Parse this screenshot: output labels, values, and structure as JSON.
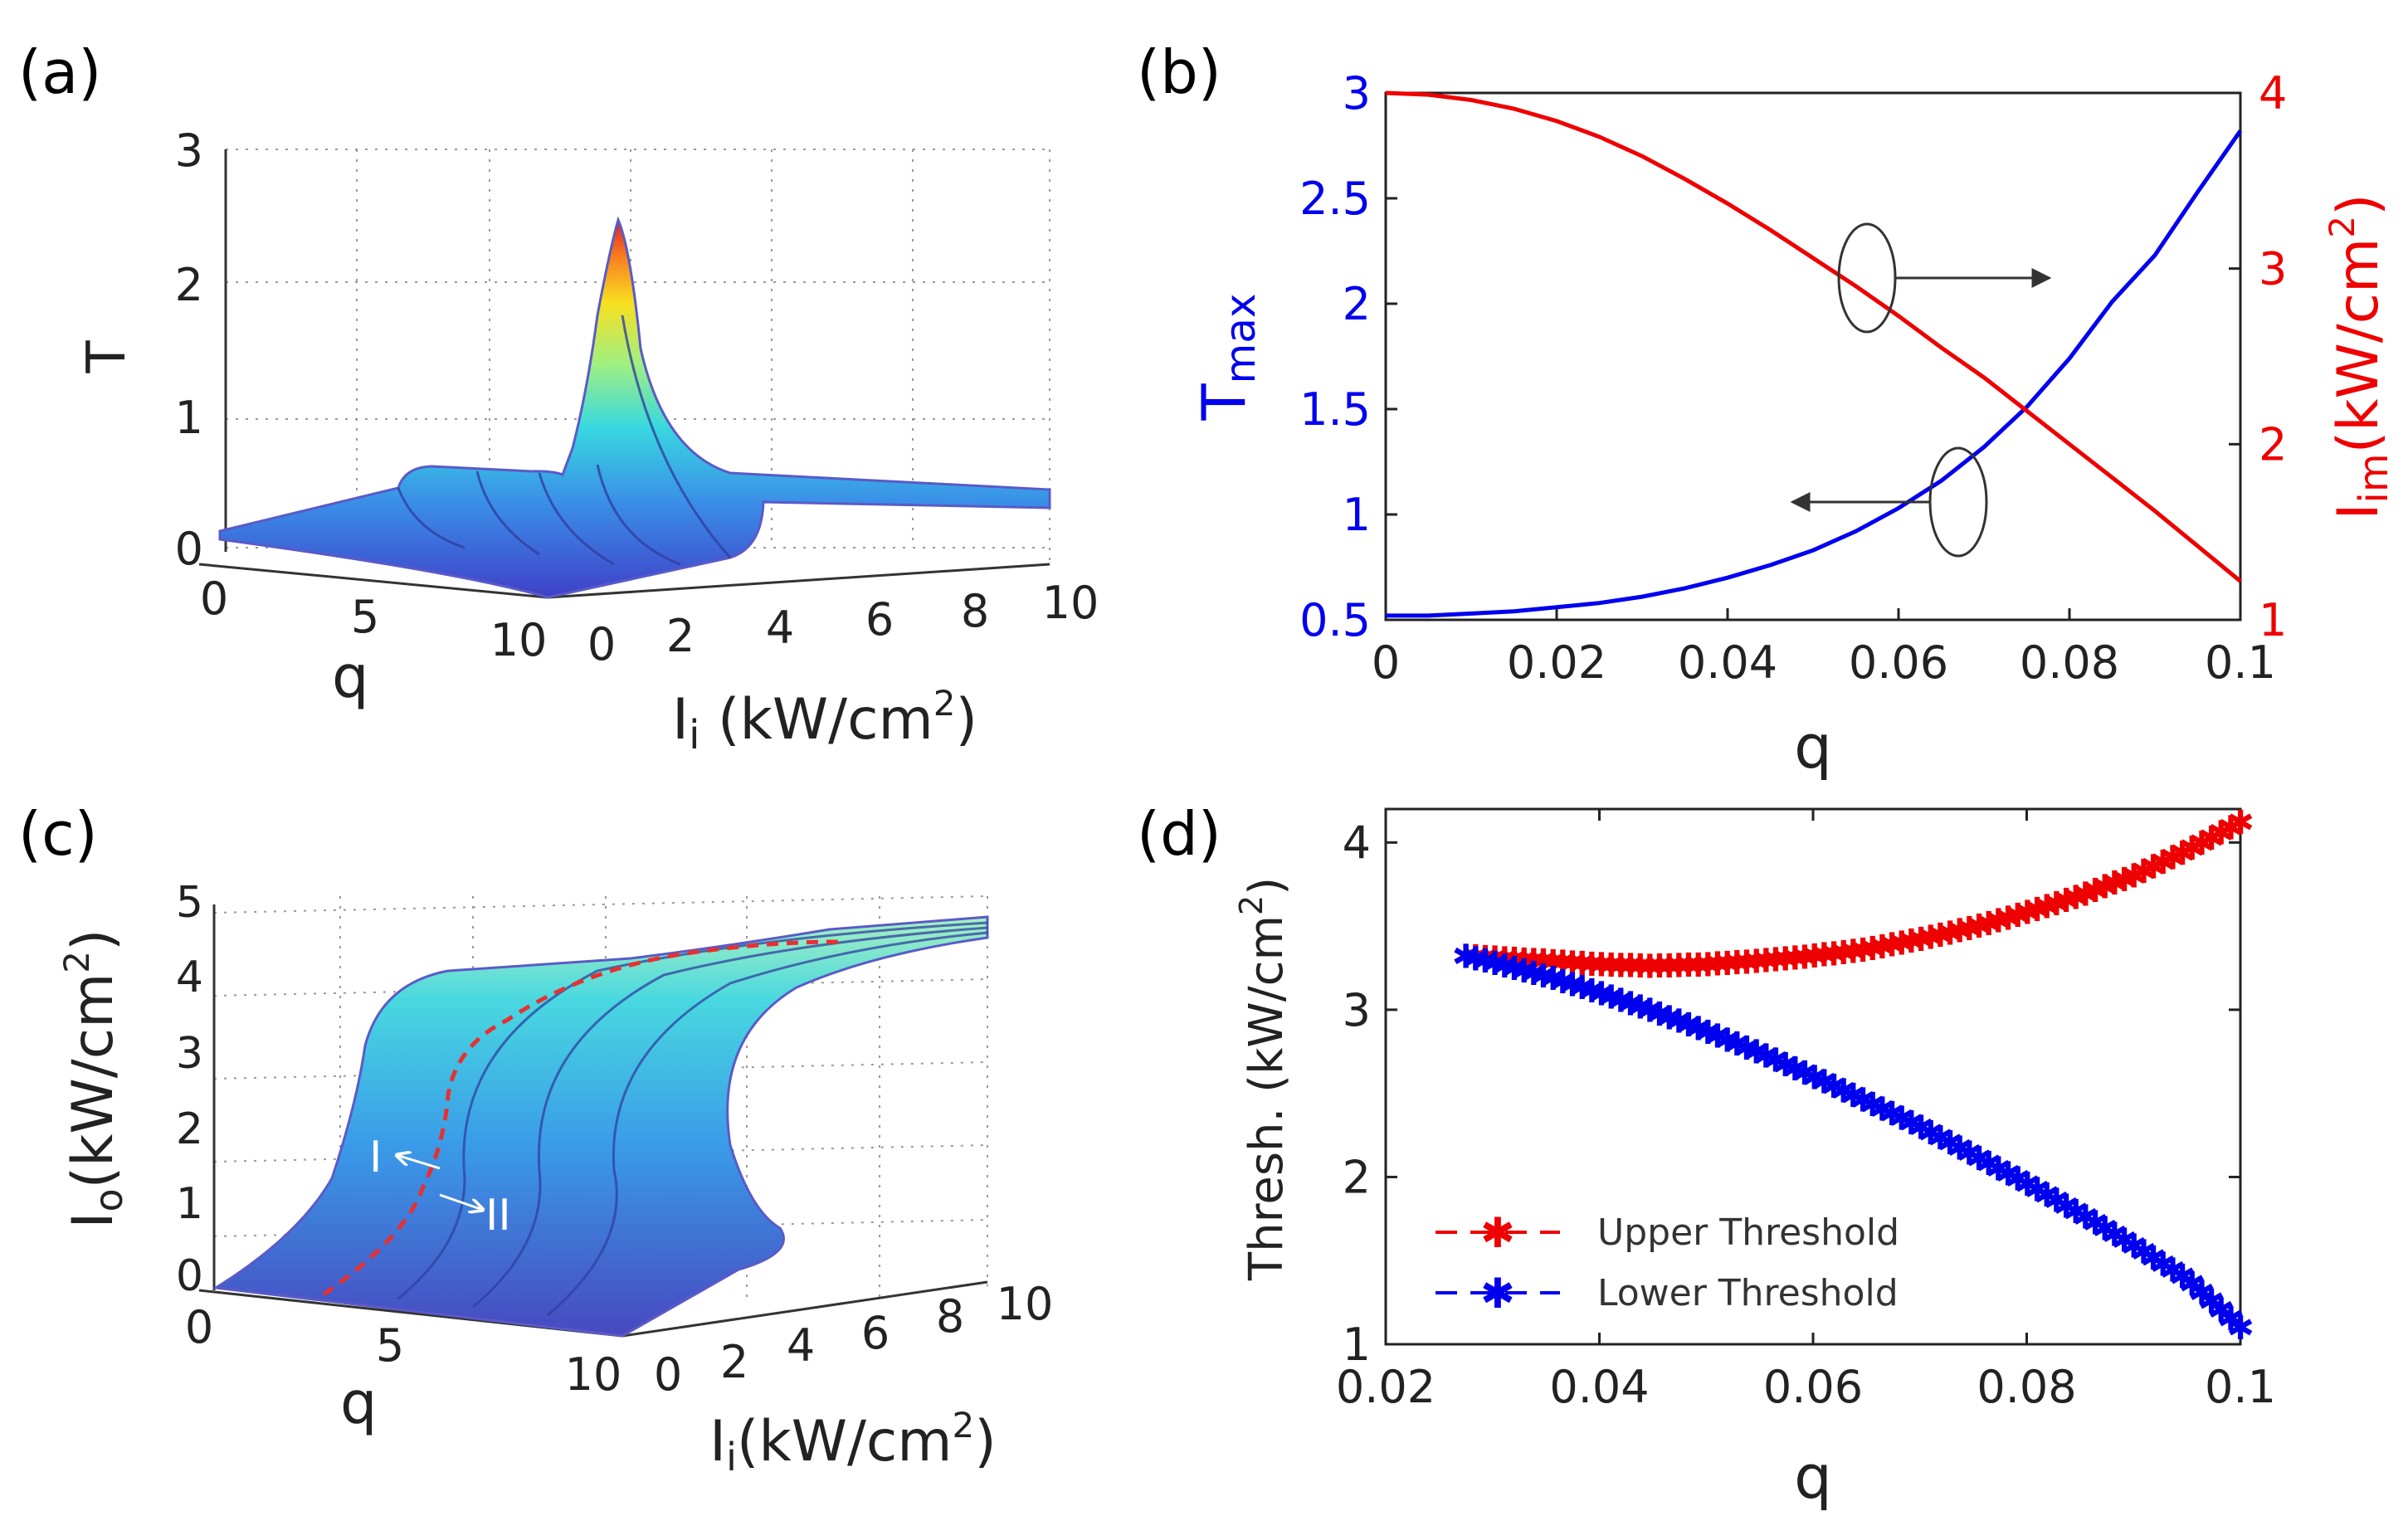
{
  "chart_data": [
    {
      "panel": "(a)",
      "type": "surface3d",
      "zlabel": "T",
      "xlabel": "q",
      "ylabel_main": "I",
      "ylabel_sub": "i",
      "ylabel_unit_pre": " (kW/cm",
      "ylabel_unit_sup": "2",
      "ylabel_unit_post": ")",
      "zticks": [
        "0",
        "1",
        "2",
        "3"
      ],
      "xticks": [
        "0",
        "5",
        "10"
      ],
      "yticks": [
        "0",
        "2",
        "4",
        "6",
        "8",
        "10"
      ],
      "zlim": [
        0,
        3
      ],
      "peak_T": 2.45
    },
    {
      "panel": "(b)",
      "type": "line",
      "xlabel": "q",
      "xticks": [
        "0",
        "0.02",
        "0.04",
        "0.06",
        "0.08",
        "0.1"
      ],
      "xlim": [
        0,
        0.1
      ],
      "ylabel_left_main": "T",
      "ylabel_left_sub": "max",
      "ylim_left": [
        0.5,
        3
      ],
      "yticks_left": [
        "0.5",
        "1",
        "1.5",
        "2",
        "2.5",
        "3"
      ],
      "ylabel_right_main": "I",
      "ylabel_right_sub": "im",
      "ylabel_right_unit_pre": "(kW/cm",
      "ylabel_right_unit_sup": "2",
      "ylabel_right_unit_post": ")",
      "ylim_right": [
        1,
        4
      ],
      "yticks_right": [
        "1",
        "2",
        "3",
        "4"
      ],
      "x": [
        0,
        0.005,
        0.01,
        0.015,
        0.02,
        0.025,
        0.03,
        0.035,
        0.04,
        0.045,
        0.05,
        0.055,
        0.06,
        0.065,
        0.07,
        0.075,
        0.08,
        0.085,
        0.09,
        0.095,
        0.1
      ],
      "series": [
        {
          "name": "T_max",
          "axis": "left",
          "color": "#0000ee",
          "values": [
            0.52,
            0.52,
            0.53,
            0.54,
            0.56,
            0.58,
            0.61,
            0.65,
            0.7,
            0.76,
            0.83,
            0.92,
            1.03,
            1.16,
            1.32,
            1.51,
            1.74,
            2.01,
            2.23,
            2.53,
            2.82
          ]
        },
        {
          "name": "I_im",
          "axis": "right",
          "color": "#ee0000",
          "values": [
            4.0,
            3.99,
            3.96,
            3.91,
            3.84,
            3.75,
            3.64,
            3.51,
            3.37,
            3.22,
            3.06,
            2.9,
            2.73,
            2.55,
            2.38,
            2.19,
            2.0,
            1.81,
            1.62,
            1.42,
            1.22
          ]
        }
      ]
    },
    {
      "panel": "(c)",
      "type": "surface3d",
      "zlabel_main": "I",
      "zlabel_sub": "o",
      "zlabel_unit_pre": "(kW/cm",
      "zlabel_unit_sup": "2",
      "zlabel_unit_post": ")",
      "xlabel": "q",
      "ylabel_main": "I",
      "ylabel_sub": "i",
      "ylabel_unit_pre": "(kW/cm",
      "ylabel_unit_sup": "2",
      "ylabel_unit_post": ")",
      "zticks": [
        "0",
        "1",
        "2",
        "3",
        "4",
        "5"
      ],
      "xticks": [
        "0",
        "5",
        "10"
      ],
      "yticks": [
        "0",
        "2",
        "4",
        "6",
        "8",
        "10"
      ],
      "annotations": [
        "I",
        "II"
      ]
    },
    {
      "panel": "(d)",
      "type": "scatter",
      "xlabel": "q",
      "ylabel": "Thresh. (kW/cm",
      "ylabel_sup": "2",
      "ylabel_post": ")",
      "xticks": [
        "0.02",
        "0.04",
        "0.06",
        "0.08",
        "0.1"
      ],
      "yticks": [
        "1",
        "2",
        "3",
        "4"
      ],
      "xlim": [
        0.02,
        0.1
      ],
      "ylim": [
        1,
        4.2
      ],
      "x": [
        0.0275,
        0.03,
        0.035,
        0.04,
        0.045,
        0.05,
        0.055,
        0.06,
        0.065,
        0.07,
        0.075,
        0.08,
        0.085,
        0.09,
        0.095,
        0.1
      ],
      "series": [
        {
          "name": "Upper Threshold",
          "color": "#ee0000",
          "values": [
            3.32,
            3.31,
            3.29,
            3.27,
            3.26,
            3.27,
            3.29,
            3.32,
            3.36,
            3.42,
            3.49,
            3.58,
            3.68,
            3.8,
            3.95,
            4.12
          ]
        },
        {
          "name": "Lower Threshold",
          "color": "#0000ee",
          "values": [
            3.32,
            3.28,
            3.2,
            3.1,
            2.99,
            2.87,
            2.74,
            2.6,
            2.45,
            2.3,
            2.13,
            1.96,
            1.78,
            1.59,
            1.39,
            1.1
          ]
        }
      ],
      "legend": "lower-left"
    }
  ]
}
